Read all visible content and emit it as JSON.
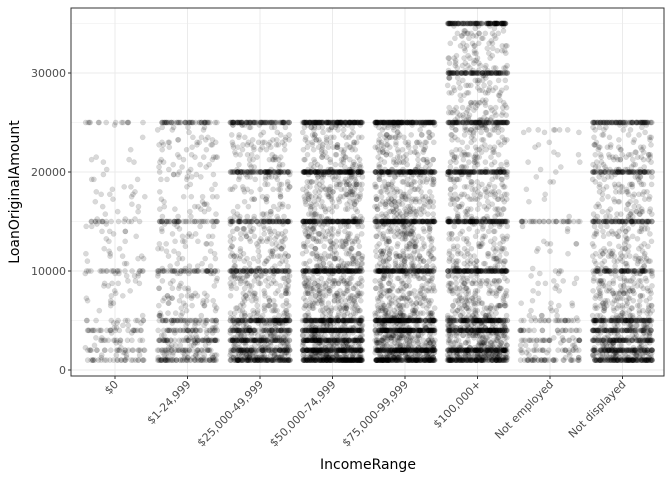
{
  "chart_data": {
    "type": "scatter",
    "title": "",
    "xlabel": "IncomeRange",
    "ylabel": "LoanOriginalAmount",
    "categories": [
      "$0",
      "$1-24,999",
      "$25,000-49,999",
      "$50,000-74,999",
      "$75,000-99,999",
      "$100,000+",
      "Not employed",
      "Not displayed"
    ],
    "ylim": [
      0,
      36000
    ],
    "yticks": [
      0,
      10000,
      20000,
      30000
    ],
    "ytick_labels": [
      "0",
      "10000",
      "20000",
      "30000"
    ],
    "grid": true,
    "jitter": true,
    "point_color": "#000000",
    "point_alpha": 0.15,
    "groups": [
      {
        "category": "$0",
        "min": 1000,
        "max": 25000,
        "density": "sparse",
        "common_values": [
          1000,
          2000,
          3000,
          4000,
          5000,
          10000,
          15000,
          25000
        ]
      },
      {
        "category": "$1-24,999",
        "min": 1000,
        "max": 25000,
        "density": "medium",
        "common_values": [
          1000,
          2000,
          3000,
          4000,
          5000,
          10000,
          15000,
          25000
        ]
      },
      {
        "category": "$25,000-49,999",
        "min": 1000,
        "max": 25000,
        "density": "dense",
        "common_values": [
          1000,
          2000,
          3000,
          4000,
          5000,
          10000,
          15000,
          20000,
          25000
        ]
      },
      {
        "category": "$50,000-74,999",
        "min": 1000,
        "max": 25000,
        "density": "very dense",
        "common_values": [
          1000,
          2000,
          3000,
          4000,
          5000,
          10000,
          15000,
          20000,
          25000
        ]
      },
      {
        "category": "$75,000-99,999",
        "min": 1000,
        "max": 25000,
        "density": "very dense",
        "common_values": [
          1000,
          2000,
          4000,
          5000,
          10000,
          15000,
          20000,
          25000
        ]
      },
      {
        "category": "$100,000+",
        "min": 1000,
        "max": 35000,
        "density": "very dense",
        "common_values": [
          1000,
          2000,
          4000,
          5000,
          10000,
          15000,
          20000,
          25000,
          30000,
          35000
        ]
      },
      {
        "category": "Not employed",
        "min": 1000,
        "max": 25000,
        "density": "sparse",
        "common_values": [
          1000,
          2000,
          3000,
          4000,
          5000,
          15000
        ]
      },
      {
        "category": "Not displayed",
        "min": 1000,
        "max": 25000,
        "density": "dense",
        "common_values": [
          1000,
          2000,
          3000,
          4000,
          5000,
          10000,
          15000,
          20000,
          25000
        ]
      }
    ]
  }
}
